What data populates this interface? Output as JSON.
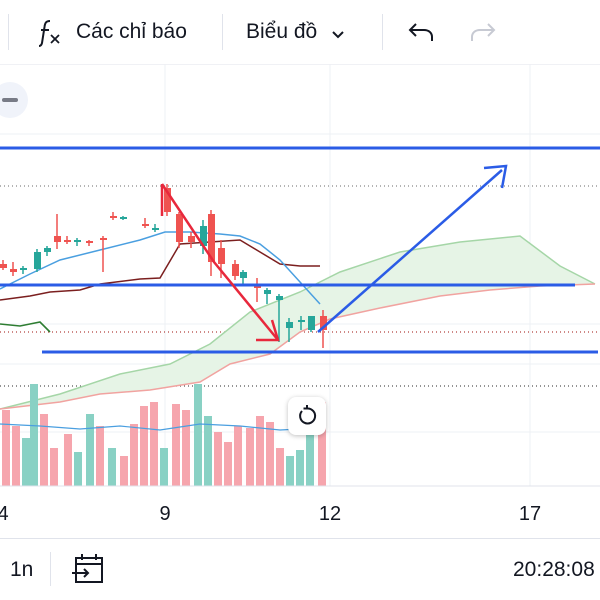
{
  "toolbar": {
    "indicators_label": "Các chỉ báo",
    "chart_type_label": "Biểu đồ",
    "indicators_icon": "function-fx-icon",
    "chart_type_icon": "chevron-down-icon",
    "undo_icon": "undo-icon",
    "redo_icon": "redo-icon"
  },
  "chart": {
    "x_tick_labels": [
      "4",
      "9",
      "12",
      "17"
    ],
    "collapse_icon": "collapse-icon",
    "reset_icon": "reset-scale-icon",
    "colors": {
      "up_candle": "#26a69a",
      "down_candle": "#ef5350",
      "drawing_blue": "#2b5ce6",
      "drawing_red": "#e8283c",
      "cloud_fill": "#e6f4e6",
      "cloud_green_line": "#a5d6a7",
      "cloud_red_line": "#f1a3a0",
      "maroon_line": "#7b1f1f",
      "lightblue_line": "#4a9fe0",
      "vol_up": "#89d1c4",
      "vol_down": "#f6a5ad"
    }
  },
  "bottombar": {
    "interval_label": "1n",
    "date_range_icon": "calendar-range-icon",
    "clock_text": "20:28:08"
  }
}
